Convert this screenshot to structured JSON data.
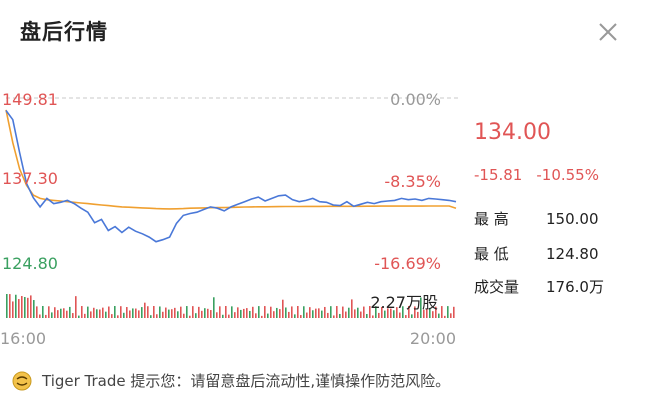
{
  "header": {
    "title": "盘后行情"
  },
  "icons": {
    "close": "close-icon",
    "logo": "tiger-logo-icon"
  },
  "quote": {
    "price": "134.00",
    "change": "-15.81",
    "change_pct": "-10.55%",
    "high_label": "最 高",
    "high": "150.00",
    "low_label": "最 低",
    "low": "124.80",
    "volume_label": "成交量",
    "volume": "176.0万"
  },
  "chart_data": {
    "type": "line",
    "y_left_ticks": [
      "149.81",
      "137.30",
      "124.80"
    ],
    "y_right_ticks": [
      "0.00%",
      "-8.35%",
      "-16.69%"
    ],
    "x_ticks": [
      "16:00",
      "20:00"
    ],
    "ylim": [
      124.8,
      149.81
    ],
    "volume_max_label": "2.27万股",
    "colors": {
      "price": "#4a78d8",
      "avg": "#f0a030",
      "up": "#e05555",
      "down": "#3aa060",
      "grid": "#c8c8c8"
    },
    "series": [
      {
        "values": [
          147.9,
          146.5,
          141.5,
          136.8,
          134.6,
          133.2,
          134.5,
          133.7,
          133.9,
          134.2,
          133.7,
          133.0,
          132.4,
          130.8,
          131.3,
          129.6,
          130.2,
          129.3,
          130.1,
          129.5,
          129.1,
          128.6,
          127.9,
          128.2,
          128.6,
          130.7,
          131.9,
          132.2,
          132.4,
          132.8,
          133.2,
          133.0,
          132.6,
          133.2,
          133.6,
          134.0,
          134.4,
          134.7,
          134.1,
          134.5,
          134.9,
          135.0,
          134.3,
          134.0,
          134.2,
          134.5,
          134.0,
          133.9,
          133.5,
          133.4,
          134.0,
          133.3,
          133.6,
          133.9,
          133.7,
          134.0,
          134.1,
          134.2,
          134.5,
          134.3,
          134.4,
          134.2,
          134.5,
          134.4,
          134.3,
          134.2,
          134.0
        ]
      },
      {
        "values": [
          148.0,
          143.0,
          139.0,
          136.5,
          135.0,
          134.5,
          134.3,
          134.2,
          134.1,
          134.0,
          133.9,
          133.8,
          133.7,
          133.6,
          133.5,
          133.4,
          133.3,
          133.2,
          133.15,
          133.1,
          133.05,
          133.0,
          132.95,
          132.92,
          132.9,
          132.92,
          132.95,
          133.0,
          133.02,
          133.05,
          133.08,
          133.1,
          133.1,
          133.12,
          133.15,
          133.18,
          133.2,
          133.22,
          133.22,
          133.24,
          133.25,
          133.26,
          133.26,
          133.27,
          133.28,
          133.28,
          133.28,
          133.29,
          133.29,
          133.29,
          133.3,
          133.3,
          133.3,
          133.31,
          133.31,
          133.32,
          133.32,
          133.32,
          133.33,
          133.33,
          133.33,
          133.33,
          133.34,
          133.34,
          133.34,
          133.34,
          133.0
        ]
      }
    ]
  },
  "footer": {
    "notice": "Tiger Trade 提示您：请留意盘后流动性,谨慎操作防范风险。"
  }
}
